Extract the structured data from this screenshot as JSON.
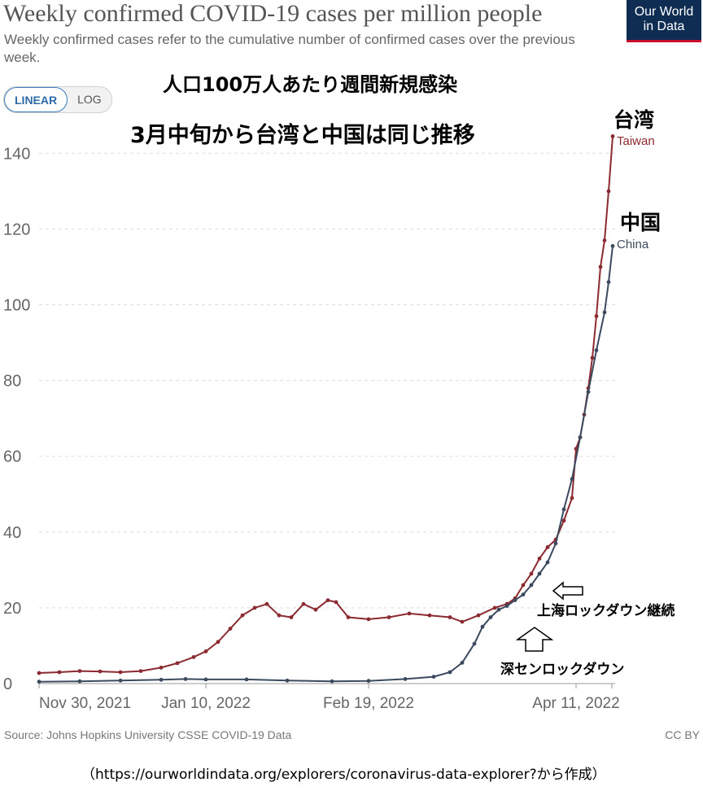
{
  "header": {
    "title": "Weekly confirmed COVID-19 cases per million people",
    "subtitle": "Weekly confirmed cases refer to the cumulative number of confirmed cases over the previous week.",
    "logo_line1": "Our World",
    "logo_line2": "in Data"
  },
  "toggle": {
    "linear": "LINEAR",
    "log": "LOG"
  },
  "annotations": {
    "headline": "人口100万人あたり週間新規感染",
    "subheadline": "3月中旬から台湾と中国は同じ推移",
    "taiwan_jp": "台湾",
    "china_jp": "中国",
    "shanghai": "上海ロックダウン継続",
    "shenzhen": "深センロックダウン"
  },
  "footer": {
    "source": "Source: Johns Hopkins University CSSE COVID-19 Data",
    "license": "CC BY",
    "url_note": "（https://ourworldindata.org/explorers/coronavirus-data-explorer?から作成）"
  },
  "colors": {
    "taiwan": "#8b2a30",
    "china": "#3b4a5e",
    "grid": "#dddddd",
    "axis": "#666666"
  },
  "icons": {
    "arrow_left": "left-arrow-icon",
    "arrow_up": "up-arrow-icon"
  },
  "chart_data": {
    "type": "line",
    "title": "Weekly confirmed COVID-19 cases per million people",
    "ylim": [
      0,
      145
    ],
    "yticks": [
      0,
      20,
      40,
      60,
      80,
      100,
      120,
      140
    ],
    "xlim": [
      "2021-11-30",
      "2022-04-23"
    ],
    "xticks": [
      {
        "date": "2021-11-30",
        "label": "Nov 30, 2021"
      },
      {
        "date": "2022-01-10",
        "label": "Jan 10, 2022"
      },
      {
        "date": "2022-02-19",
        "label": "Feb 19, 2022"
      },
      {
        "date": "2022-04-11",
        "label": "Apr 11, 2022"
      }
    ],
    "grid": true,
    "series": [
      {
        "name": "Taiwan",
        "points": [
          [
            "2021-11-30",
            2.8
          ],
          [
            "2021-12-05",
            3.0
          ],
          [
            "2021-12-10",
            3.3
          ],
          [
            "2021-12-15",
            3.2
          ],
          [
            "2021-12-20",
            3.0
          ],
          [
            "2021-12-25",
            3.3
          ],
          [
            "2021-12-30",
            4.2
          ],
          [
            "2022-01-03",
            5.4
          ],
          [
            "2022-01-07",
            7.0
          ],
          [
            "2022-01-10",
            8.5
          ],
          [
            "2022-01-13",
            11.0
          ],
          [
            "2022-01-16",
            14.5
          ],
          [
            "2022-01-19",
            18.0
          ],
          [
            "2022-01-22",
            20.0
          ],
          [
            "2022-01-25",
            21.0
          ],
          [
            "2022-01-28",
            18.0
          ],
          [
            "2022-01-31",
            17.5
          ],
          [
            "2022-02-03",
            21.0
          ],
          [
            "2022-02-06",
            19.5
          ],
          [
            "2022-02-09",
            22.0
          ],
          [
            "2022-02-11",
            21.5
          ],
          [
            "2022-02-14",
            17.5
          ],
          [
            "2022-02-19",
            17.0
          ],
          [
            "2022-02-24",
            17.5
          ],
          [
            "2022-03-01",
            18.5
          ],
          [
            "2022-03-06",
            18.0
          ],
          [
            "2022-03-11",
            17.5
          ],
          [
            "2022-03-14",
            16.3
          ],
          [
            "2022-03-18",
            18.0
          ],
          [
            "2022-03-22",
            20.0
          ],
          [
            "2022-03-25",
            21.0
          ],
          [
            "2022-03-27",
            22.5
          ],
          [
            "2022-03-29",
            26.0
          ],
          [
            "2022-03-31",
            29.0
          ],
          [
            "2022-04-02",
            33.0
          ],
          [
            "2022-04-04",
            36.0
          ],
          [
            "2022-04-06",
            38.0
          ],
          [
            "2022-04-08",
            43.0
          ],
          [
            "2022-04-10",
            49.0
          ],
          [
            "2022-04-11",
            62.0
          ],
          [
            "2022-04-12",
            65.0
          ],
          [
            "2022-04-13",
            71.0
          ],
          [
            "2022-04-14",
            78.0
          ],
          [
            "2022-04-15",
            86.0
          ],
          [
            "2022-04-16",
            97.0
          ],
          [
            "2022-04-17",
            110.0
          ],
          [
            "2022-04-18",
            117.0
          ],
          [
            "2022-04-19",
            130.0
          ],
          [
            "2022-04-20",
            144.5
          ]
        ]
      },
      {
        "name": "China",
        "points": [
          [
            "2021-11-30",
            0.5
          ],
          [
            "2021-12-10",
            0.6
          ],
          [
            "2021-12-20",
            0.8
          ],
          [
            "2021-12-30",
            1.0
          ],
          [
            "2022-01-05",
            1.2
          ],
          [
            "2022-01-10",
            1.1
          ],
          [
            "2022-01-20",
            1.1
          ],
          [
            "2022-01-30",
            0.8
          ],
          [
            "2022-02-10",
            0.6
          ],
          [
            "2022-02-19",
            0.7
          ],
          [
            "2022-02-28",
            1.2
          ],
          [
            "2022-03-07",
            1.8
          ],
          [
            "2022-03-11",
            3.0
          ],
          [
            "2022-03-14",
            5.5
          ],
          [
            "2022-03-17",
            10.5
          ],
          [
            "2022-03-19",
            15.0
          ],
          [
            "2022-03-21",
            17.5
          ],
          [
            "2022-03-23",
            19.5
          ],
          [
            "2022-03-25",
            20.5
          ],
          [
            "2022-03-27",
            22.0
          ],
          [
            "2022-03-29",
            23.5
          ],
          [
            "2022-03-31",
            26.0
          ],
          [
            "2022-04-02",
            29.0
          ],
          [
            "2022-04-04",
            32.0
          ],
          [
            "2022-04-06",
            37.0
          ],
          [
            "2022-04-08",
            46.0
          ],
          [
            "2022-04-10",
            54.0
          ],
          [
            "2022-04-12",
            65.0
          ],
          [
            "2022-04-14",
            77.0
          ],
          [
            "2022-04-16",
            88.0
          ],
          [
            "2022-04-18",
            98.0
          ],
          [
            "2022-04-19",
            106.0
          ],
          [
            "2022-04-20",
            115.5
          ]
        ]
      }
    ]
  }
}
